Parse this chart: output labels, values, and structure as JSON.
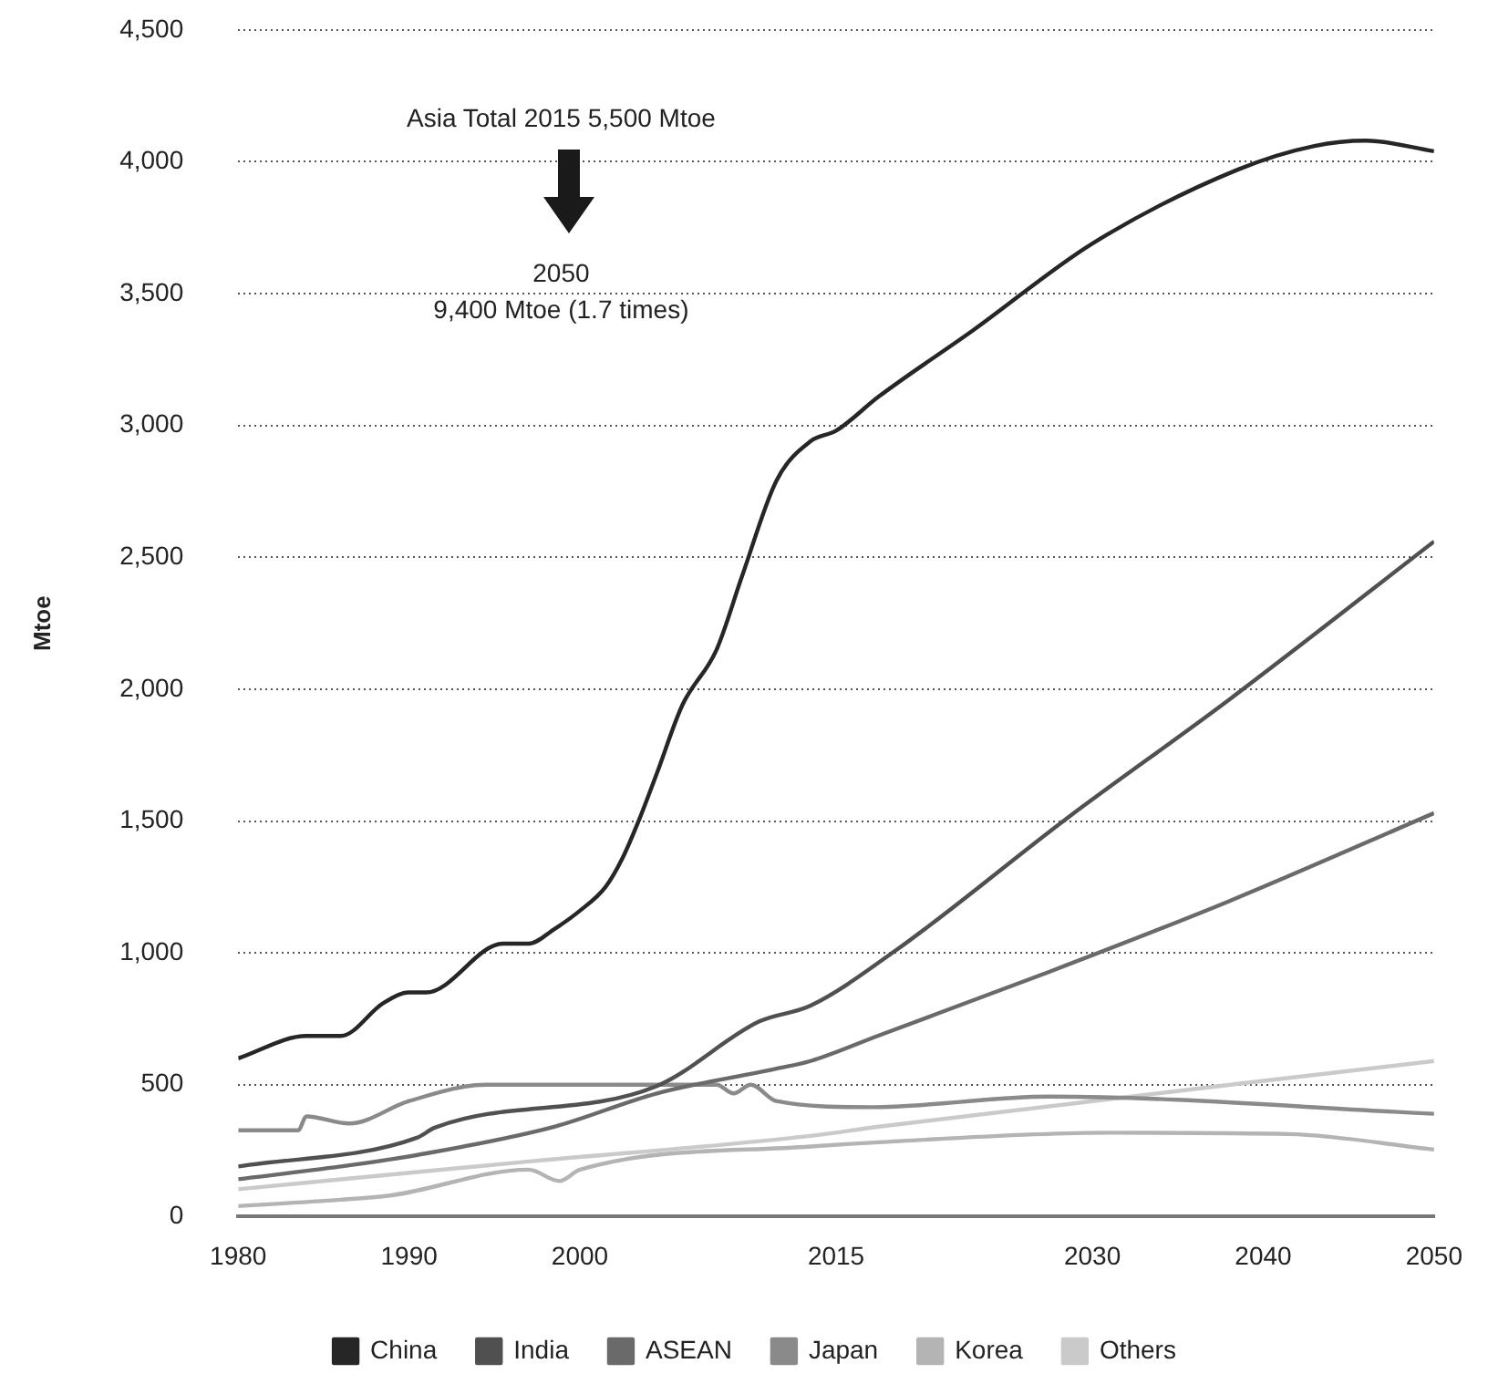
{
  "chart_data": {
    "type": "line",
    "ylabel": "Mtoe",
    "annotations": [
      "Asia Total 2015 5,500 Mtoe",
      "2050\n9,400 Mtoe (1.7 times)"
    ],
    "xlim": [
      1980,
      2050
    ],
    "xticks": [
      1980,
      1990,
      2000,
      2015,
      2030,
      2040,
      2050
    ],
    "ylim": [
      0,
      4500
    ],
    "yticks": [
      0,
      500,
      {
        "value": 1000,
        "label": "1,000"
      },
      {
        "value": 1500,
        "label": "1,500"
      },
      {
        "value": 2000,
        "label": "2,000"
      },
      {
        "value": 2500,
        "label": "2,500"
      },
      {
        "value": 3000,
        "label": "3,000"
      },
      {
        "value": 3500,
        "label": "3,500"
      },
      {
        "value": 4000,
        "label": "4,000"
      },
      {
        "value": 4500,
        "label": "4,500"
      }
    ],
    "grid": "y",
    "legend": "bottom",
    "marker": "none",
    "line_style": "solid",
    "series": [
      {
        "name": "China",
        "color": "#262626",
        "x": [
          1980,
          1984,
          1986,
          1988.5,
          1990,
          1991,
          1995.5,
          1997,
          1998.5,
          2000,
          2001.5,
          2002.5,
          2003.5,
          2004.5,
          2006,
          2008,
          2009.5,
          2011.5,
          2013.5,
          2015,
          2017.5,
          2023,
          2030,
          2038.5,
          2043,
          2046,
          2050
        ],
        "values": [
          600,
          685,
          685,
          810,
          850,
          850,
          1035,
          1035,
          1090,
          1160,
          1250,
          1360,
          1510,
          1680,
          1940,
          2150,
          2430,
          2790,
          2940,
          2980,
          3110,
          3360,
          3690,
          3970,
          4060,
          4080,
          4040
        ]
      },
      {
        "name": "India",
        "color": "#505050",
        "x": [
          1980,
          1990.5,
          1991.5,
          2004.5,
          2010.5,
          2013.5,
          2018.5,
          2028.5,
          2038,
          2050
        ],
        "values": [
          190,
          300,
          337,
          495,
          740,
          800,
          1010,
          1510,
          1960,
          2560
        ]
      },
      {
        "name": "ASEAN",
        "color": "#6a6a6a",
        "x": [
          1980,
          1986,
          1990.5,
          1998.5,
          2004.5,
          2011.5,
          2013.5,
          2017.5,
          2027.5,
          2038,
          2050
        ],
        "values": [
          142,
          190,
          234,
          341,
          467,
          561,
          590,
          687,
          929,
          1196,
          1530
        ]
      },
      {
        "name": "Japan",
        "color": "#8a8a8a",
        "x": [
          1980,
          1983.5,
          1984,
          1986.5,
          1990,
          1994.5,
          2008,
          2009,
          2010,
          2011.5,
          2017,
          2027.5,
          2050
        ],
        "values": [
          327,
          327,
          380,
          353,
          438,
          500,
          500,
          467,
          500,
          438,
          415,
          455,
          390
        ]
      },
      {
        "name": "Korea",
        "color": "#b4b4b4",
        "x": [
          1980,
          1986,
          1989,
          1997,
          1998.8,
          2000,
          2013.5,
          2017.5,
          2031,
          2041.5,
          2050
        ],
        "values": [
          40,
          64,
          81,
          178,
          135,
          178,
          266,
          282,
          318,
          313,
          254
        ]
      },
      {
        "name": "Others",
        "color": "#cacaca",
        "x": [
          1980,
          1996.5,
          2013.5,
          2017.5,
          2050
        ],
        "values": [
          104,
          206,
          306,
          341,
          590
        ]
      }
    ]
  }
}
